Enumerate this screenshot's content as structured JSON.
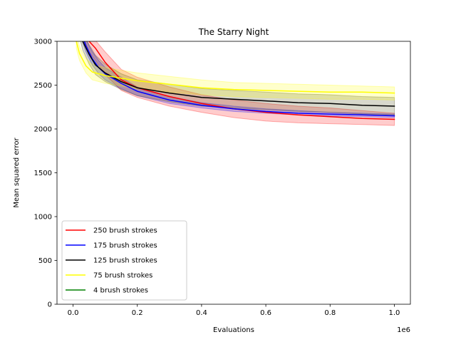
{
  "chart_data": {
    "type": "line",
    "title": "The Starry Night",
    "xlabel": "Evaluations",
    "ylabel": "Mean squared error",
    "x_offset_label": "1e6",
    "xlim": [
      -0.05,
      1.05
    ],
    "ylim": [
      0,
      3000
    ],
    "xticks": [
      0.0,
      0.2,
      0.4,
      0.6,
      0.8,
      1.0
    ],
    "xtick_labels": [
      "0.0",
      "0.2",
      "0.4",
      "0.6",
      "0.8",
      "1.0"
    ],
    "yticks": [
      0,
      500,
      1000,
      1500,
      2000,
      2500,
      3000
    ],
    "ytick_labels": [
      "0",
      "500",
      "1000",
      "1500",
      "2000",
      "2500",
      "3000"
    ],
    "grid": false,
    "legend_position": "lower-left",
    "series": [
      {
        "name": "250 brush strokes",
        "color": "#ff0000",
        "band_color": "#ff0000",
        "x": [
          0.03,
          0.05,
          0.07,
          0.1,
          0.15,
          0.2,
          0.3,
          0.4,
          0.5,
          0.6,
          0.7,
          0.8,
          0.9,
          1.0
        ],
        "y": [
          3150,
          3000,
          2920,
          2760,
          2560,
          2470,
          2370,
          2290,
          2230,
          2190,
          2160,
          2140,
          2120,
          2110
        ],
        "lower": [
          3050,
          2880,
          2780,
          2620,
          2440,
          2360,
          2260,
          2190,
          2130,
          2090,
          2070,
          2060,
          2050,
          2040
        ],
        "upper": [
          3250,
          3100,
          3010,
          2880,
          2680,
          2590,
          2480,
          2390,
          2330,
          2290,
          2260,
          2240,
          2210,
          2180
        ]
      },
      {
        "name": "175 brush strokes",
        "color": "#0000ff",
        "band_color": "#0000ff",
        "x": [
          0.02,
          0.04,
          0.06,
          0.08,
          0.1,
          0.15,
          0.2,
          0.3,
          0.4,
          0.5,
          0.6,
          0.7,
          0.8,
          0.9,
          1.0
        ],
        "y": [
          3150,
          2950,
          2800,
          2700,
          2630,
          2520,
          2430,
          2330,
          2270,
          2230,
          2200,
          2180,
          2170,
          2160,
          2150
        ],
        "lower": [
          3100,
          2880,
          2730,
          2630,
          2560,
          2460,
          2380,
          2290,
          2240,
          2200,
          2180,
          2160,
          2150,
          2140,
          2130
        ],
        "upper": [
          3200,
          3020,
          2880,
          2780,
          2700,
          2590,
          2480,
          2370,
          2300,
          2260,
          2230,
          2210,
          2190,
          2180,
          2170
        ]
      },
      {
        "name": "125 brush strokes",
        "color": "#000000",
        "band_color": "#3a3a00",
        "x": [
          0.02,
          0.03,
          0.05,
          0.07,
          0.1,
          0.15,
          0.2,
          0.3,
          0.4,
          0.5,
          0.6,
          0.7,
          0.8,
          0.9,
          1.0
        ],
        "y": [
          3150,
          3000,
          2850,
          2730,
          2640,
          2540,
          2470,
          2410,
          2360,
          2340,
          2320,
          2300,
          2290,
          2270,
          2260
        ],
        "lower": [
          3050,
          2900,
          2740,
          2620,
          2540,
          2450,
          2380,
          2310,
          2260,
          2240,
          2220,
          2200,
          2190,
          2170,
          2160
        ],
        "upper": [
          3250,
          3100,
          2960,
          2840,
          2740,
          2630,
          2560,
          2510,
          2460,
          2440,
          2420,
          2400,
          2390,
          2370,
          2360
        ]
      },
      {
        "name": "75 brush strokes",
        "color": "#ffff00",
        "band_color": "#ffff00",
        "x": [
          0.01,
          0.02,
          0.04,
          0.06,
          0.1,
          0.15,
          0.2,
          0.3,
          0.4,
          0.5,
          0.6,
          0.7,
          0.8,
          0.9,
          1.0
        ],
        "y": [
          3000,
          2860,
          2720,
          2650,
          2610,
          2580,
          2550,
          2510,
          2470,
          2450,
          2440,
          2430,
          2420,
          2420,
          2410
        ],
        "lower": [
          2920,
          2780,
          2640,
          2560,
          2520,
          2490,
          2460,
          2420,
          2390,
          2370,
          2360,
          2350,
          2340,
          2340,
          2330
        ],
        "upper": [
          3080,
          2940,
          2800,
          2740,
          2700,
          2670,
          2640,
          2600,
          2560,
          2530,
          2520,
          2510,
          2500,
          2490,
          2480
        ]
      },
      {
        "name": "4 brush strokes",
        "color": "#008000",
        "band_color": "#008000",
        "x": [],
        "y": [],
        "lower": [],
        "upper": []
      }
    ]
  }
}
